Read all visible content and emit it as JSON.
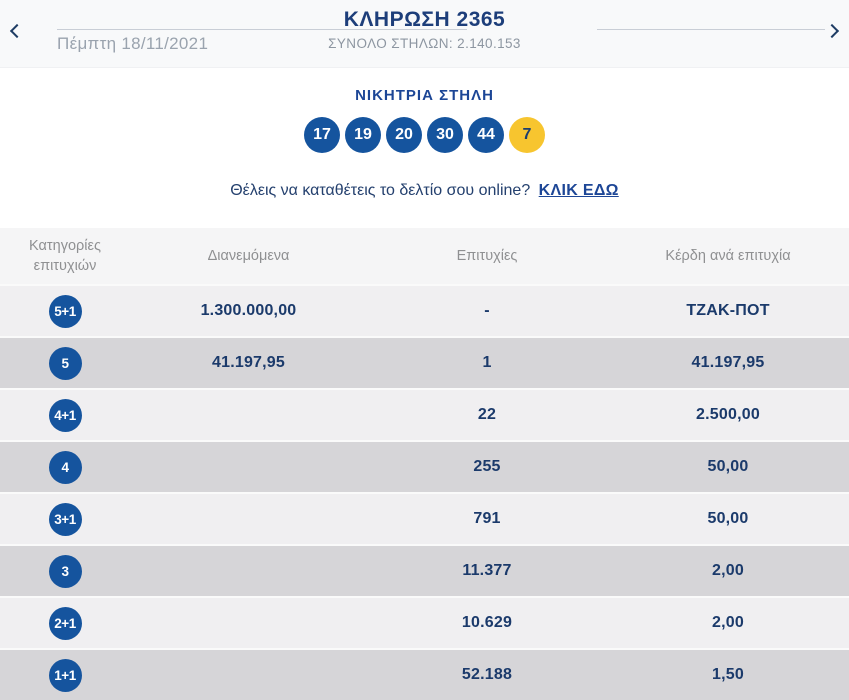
{
  "header": {
    "draw_title": "ΚΛΗΡΩΣΗ 2365",
    "total_columns": "ΣΥΝΟΛΟ ΣΤΗΛΩΝ: 2.140.153",
    "date": "Πέμπτη 18/11/2021",
    "prev_icon": "chevron-left",
    "next_icon": "chevron-right"
  },
  "winning": {
    "heading": "ΝΙΚΗΤΡΙΑ ΣΤΗΛΗ",
    "numbers": [
      "17",
      "19",
      "20",
      "30",
      "44"
    ],
    "joker_number": "7"
  },
  "cta": {
    "text": "Θέλεις να καταθέτεις το δελτίο σου online?",
    "link_label": "ΚΛΙΚ ΕΔΩ"
  },
  "table": {
    "headers": {
      "category": "Κατηγορίες επιτυχιών",
      "distributed": "Διανεμόμενα",
      "winners": "Επιτυχίες",
      "prize": "Κέρδη ανά επιτυχία"
    },
    "rows": [
      {
        "category": "5+1",
        "distributed": "1.300.000,00",
        "winners": "-",
        "prize": "ΤΖΑΚ-ΠΟΤ"
      },
      {
        "category": "5",
        "distributed": "41.197,95",
        "winners": "1",
        "prize": "41.197,95"
      },
      {
        "category": "4+1",
        "distributed": "",
        "winners": "22",
        "prize": "2.500,00"
      },
      {
        "category": "4",
        "distributed": "",
        "winners": "255",
        "prize": "50,00"
      },
      {
        "category": "3+1",
        "distributed": "",
        "winners": "791",
        "prize": "50,00"
      },
      {
        "category": "3",
        "distributed": "",
        "winners": "11.377",
        "prize": "2,00"
      },
      {
        "category": "2+1",
        "distributed": "",
        "winners": "10.629",
        "prize": "2,00"
      },
      {
        "category": "1+1",
        "distributed": "",
        "winners": "52.188",
        "prize": "1,50"
      }
    ]
  },
  "colors": {
    "ball_blue": "#15549e",
    "joker_yellow": "#f7c52f",
    "navy_text": "#1b3a6b",
    "title_blue": "#1d3e7a",
    "row_light": "#f0eff1",
    "row_dark": "#d6d5d8"
  }
}
